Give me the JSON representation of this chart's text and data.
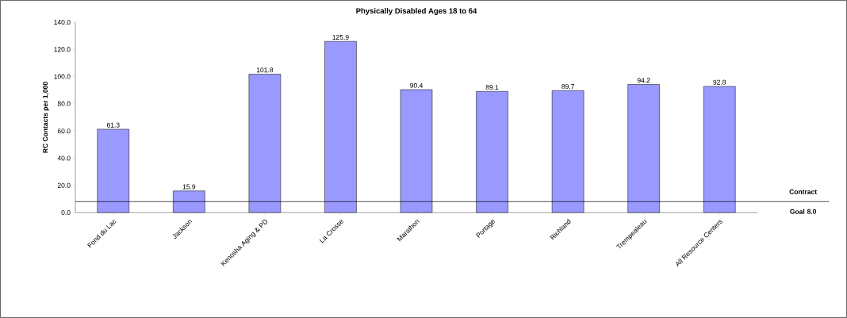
{
  "chart_data": {
    "type": "bar",
    "title": "Physically Disabled Ages 18 to 64",
    "ylabel": "RC Contacts per 1,000",
    "categories": [
      "Fond du Lac",
      "Jackson",
      "Kenosha Aging & PD",
      "La Crosse",
      "Marathon",
      "Portage",
      "Richland",
      "Trempealeau",
      "All Resource Centers"
    ],
    "values": [
      61.3,
      15.9,
      101.8,
      125.9,
      90.4,
      89.1,
      89.7,
      94.2,
      92.8
    ],
    "color": "#9999ff",
    "data_labels": true,
    "ylim": [
      0,
      140
    ],
    "yticks": [
      {
        "value": 0,
        "label": "0.0"
      },
      {
        "value": 20,
        "label": "20.0"
      },
      {
        "value": 40,
        "label": "40.0"
      },
      {
        "value": 60,
        "label": "60.0"
      },
      {
        "value": 80,
        "label": "80.0"
      },
      {
        "value": 100,
        "label": "100.0"
      },
      {
        "value": 120,
        "label": "120.0"
      },
      {
        "value": 140,
        "label": "140.0"
      }
    ],
    "ref_lines": [
      {
        "axis": "y",
        "value": 8.0,
        "label": "Contract Goal 8.0",
        "color": "#000000"
      }
    ],
    "grid": false
  }
}
